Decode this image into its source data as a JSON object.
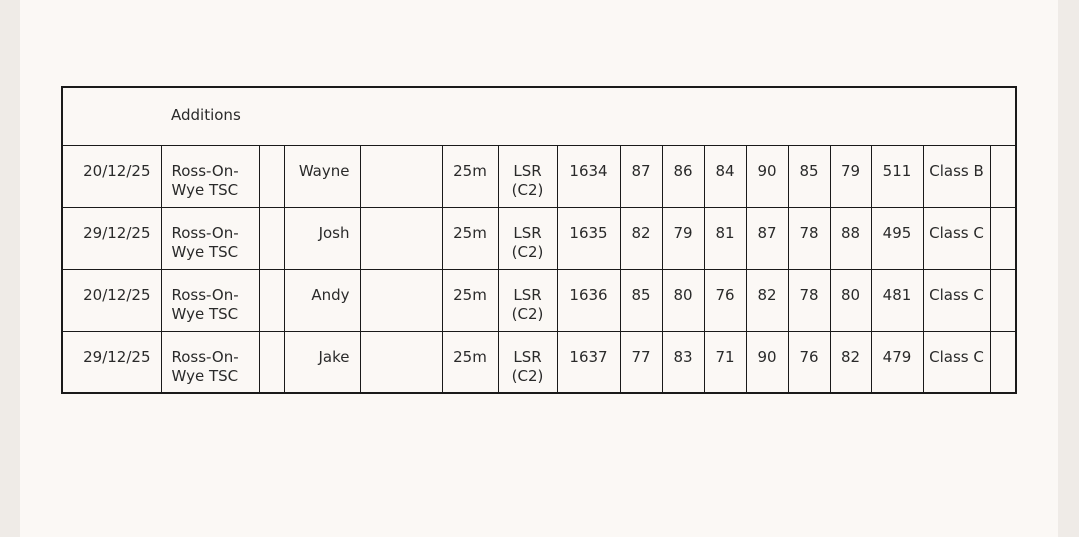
{
  "table": {
    "title": "Additions",
    "rows": [
      {
        "date": "20/12/25",
        "venue": "Ross-On-Wye TSC",
        "extra": "",
        "name": "Wayne",
        "blank": "",
        "distance": "25m",
        "discipline": "LSR (C2)",
        "card": "1634",
        "scores": [
          "87",
          "86",
          "84",
          "90",
          "85",
          "79"
        ],
        "total": "511",
        "class": "Class B",
        "last": ""
      },
      {
        "date": "29/12/25",
        "venue": "Ross-On-Wye TSC",
        "extra": "",
        "name": "Josh",
        "blank": "",
        "distance": "25m",
        "discipline": "LSR (C2)",
        "card": "1635",
        "scores": [
          "82",
          "79",
          "81",
          "87",
          "78",
          "88"
        ],
        "total": "495",
        "class": "Class C",
        "last": ""
      },
      {
        "date": "20/12/25",
        "venue": "Ross-On-Wye TSC",
        "extra": "",
        "name": "Andy",
        "blank": "",
        "distance": "25m",
        "discipline": "LSR (C2)",
        "card": "1636",
        "scores": [
          "85",
          "80",
          "76",
          "82",
          "78",
          "80"
        ],
        "total": "481",
        "class": "Class C",
        "last": ""
      },
      {
        "date": "29/12/25",
        "venue": "Ross-On-Wye TSC",
        "extra": "",
        "name": "Jake",
        "blank": "",
        "distance": "25m",
        "discipline": "LSR (C2)",
        "card": "1637",
        "scores": [
          "77",
          "83",
          "71",
          "90",
          "76",
          "82"
        ],
        "total": "479",
        "class": "Class C",
        "last": ""
      }
    ]
  }
}
